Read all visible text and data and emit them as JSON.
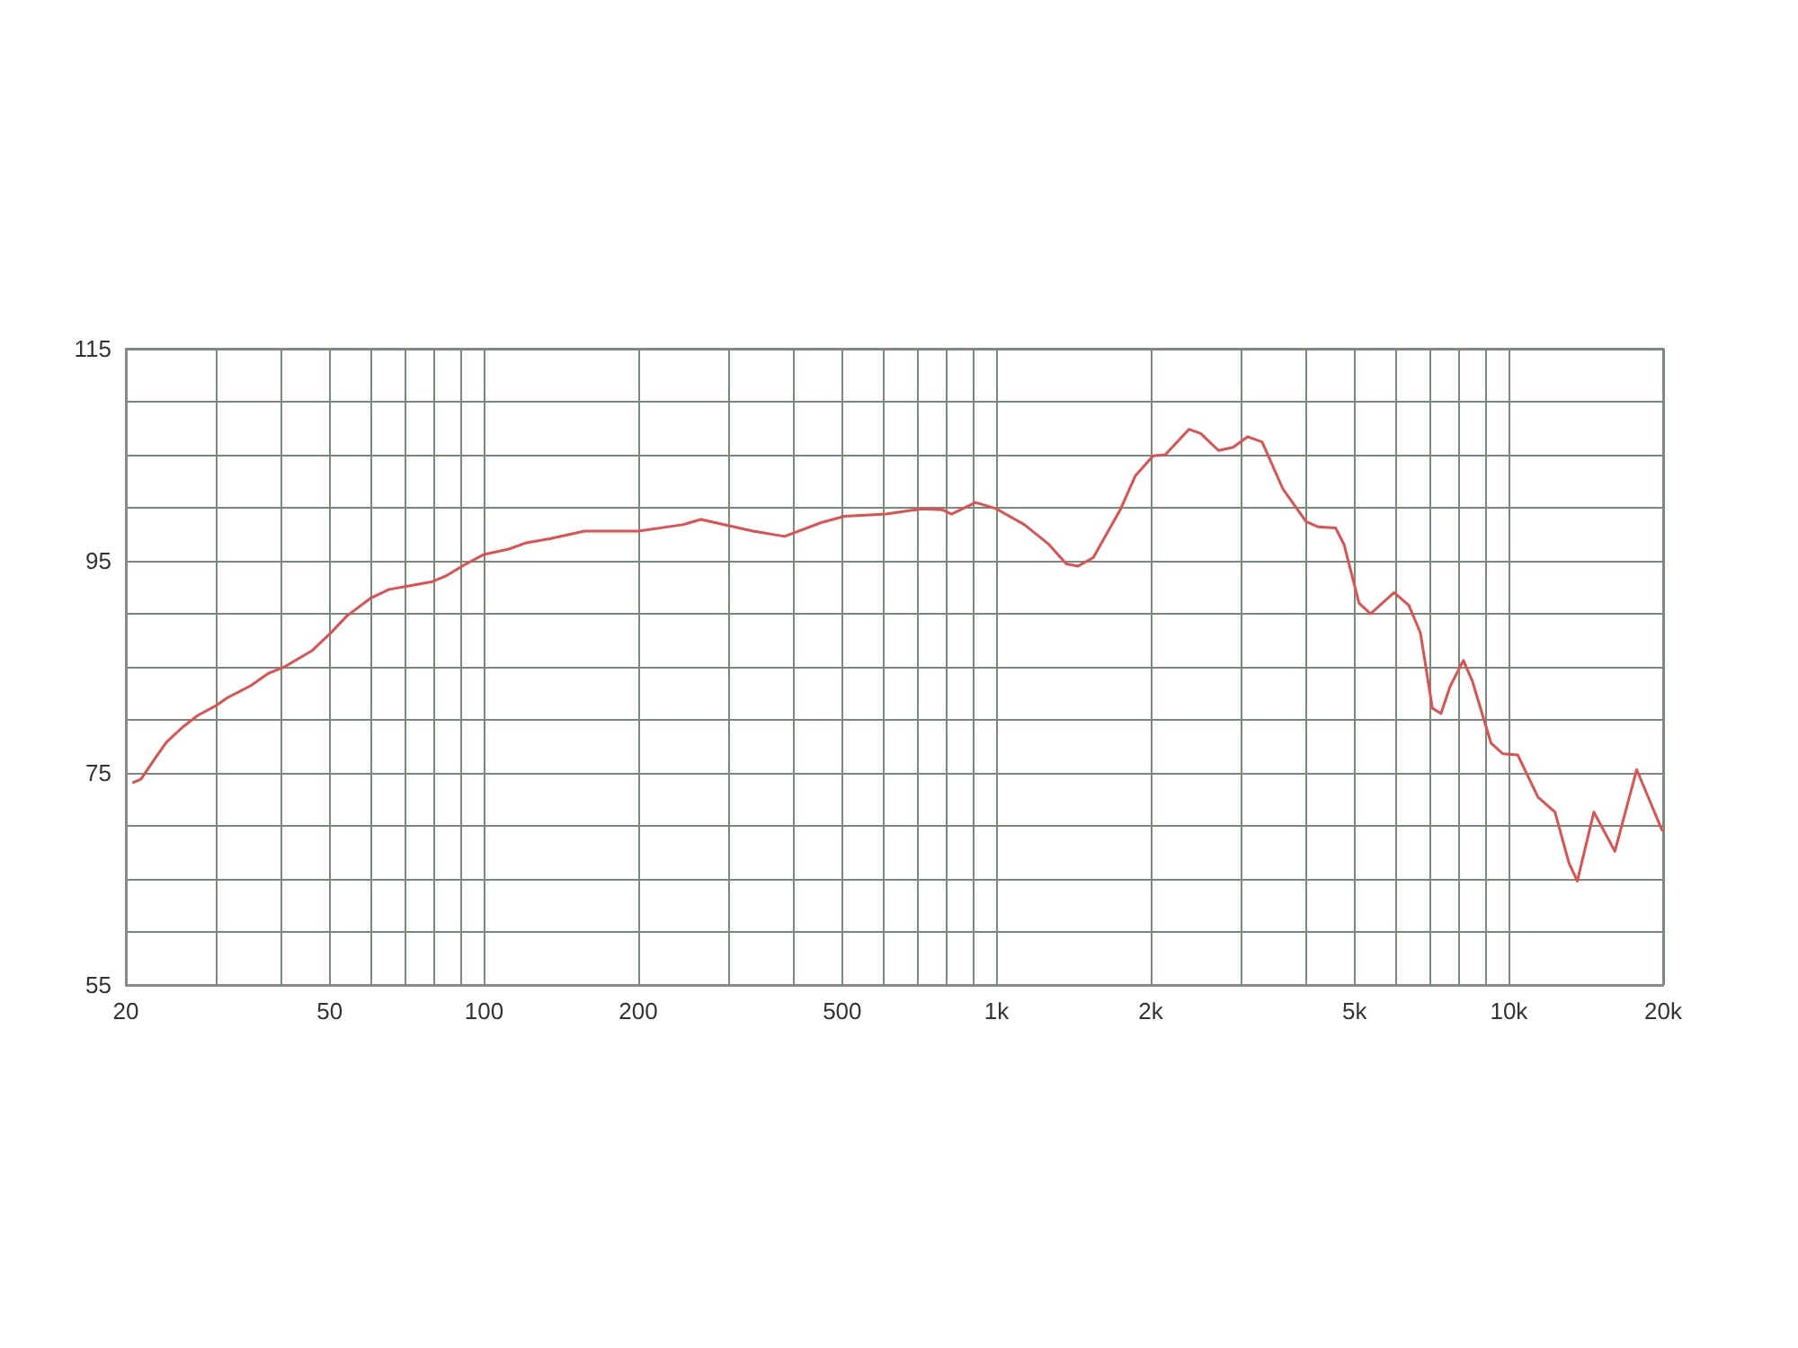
{
  "chart_data": {
    "type": "line",
    "log": "x",
    "grid": true,
    "marker": "none",
    "xlim": [
      20,
      20000
    ],
    "xticks": [
      20,
      {
        "value": 30,
        "label": null
      },
      {
        "value": 40,
        "label": null
      },
      50,
      {
        "value": 60,
        "label": null
      },
      {
        "value": 70,
        "label": null
      },
      {
        "value": 80,
        "label": null
      },
      {
        "value": 90,
        "label": null
      },
      100,
      200,
      {
        "value": 300,
        "label": null
      },
      {
        "value": 400,
        "label": null
      },
      500,
      {
        "value": 600,
        "label": null
      },
      {
        "value": 700,
        "label": null
      },
      {
        "value": 800,
        "label": null
      },
      {
        "value": 900,
        "label": null
      },
      {
        "value": 1000,
        "label": "1k"
      },
      {
        "value": 2000,
        "label": "2k"
      },
      {
        "value": 3000,
        "label": null
      },
      {
        "value": 4000,
        "label": null
      },
      {
        "value": 5000,
        "label": "5k"
      },
      {
        "value": 6000,
        "label": null
      },
      {
        "value": 7000,
        "label": null
      },
      {
        "value": 8000,
        "label": null
      },
      {
        "value": 9000,
        "label": null
      },
      {
        "value": 10000,
        "label": "10k"
      },
      {
        "value": 20000,
        "label": "20k"
      }
    ],
    "ylim": [
      55,
      115
    ],
    "yticks": [
      55,
      {
        "value": 60,
        "label": null
      },
      {
        "value": 65,
        "label": null
      },
      {
        "value": 70,
        "label": null
      },
      75,
      {
        "value": 80,
        "label": null
      },
      {
        "value": 85,
        "label": null
      },
      {
        "value": 90,
        "label": null
      },
      95,
      {
        "value": 100,
        "label": null
      },
      {
        "value": 105,
        "label": null
      },
      {
        "value": 110,
        "label": null
      },
      115
    ],
    "series": [
      {
        "color": "#e05050",
        "x": [
          20.7,
          21.4,
          22.9,
          24,
          25.8,
          27.6,
          29.9,
          31.6,
          35,
          38,
          40.8,
          46.1,
          50,
          54,
          60.2,
          65.3,
          70.9,
          78.9,
          84.5,
          91.4,
          100,
          111.8,
          121,
          135,
          157,
          200,
          244,
          265,
          335,
          386,
          455,
          505,
          609,
          716,
          785,
          817,
          910,
          1000,
          1134,
          1262,
          1369,
          1443,
          1545,
          1744,
          1866,
          2022,
          2135,
          2375,
          2504,
          2712,
          2897,
          3091,
          3300,
          3620,
          4020,
          4240,
          4590,
          4770,
          5100,
          5370,
          5970,
          6380,
          6720,
          7090,
          7370,
          7670,
          8150,
          8480,
          9230,
          9730,
          10400,
          11400,
          12300,
          13100,
          13600,
          14650,
          16100,
          17760,
          19900
        ],
        "values": [
          74.1,
          74.4,
          76.5,
          77.9,
          79.3,
          80.4,
          81.3,
          82.1,
          83.2,
          84.4,
          85,
          86.5,
          88.1,
          89.8,
          91.5,
          92.3,
          92.6,
          93,
          93.6,
          94.6,
          95.6,
          96.1,
          96.7,
          97.1,
          97.8,
          97.8,
          98.4,
          98.9,
          97.8,
          97.3,
          98.6,
          99.2,
          99.4,
          99.9,
          99.8,
          99.4,
          100.5,
          99.9,
          98.4,
          96.6,
          94.7,
          94.5,
          95.3,
          99.8,
          103,
          104.9,
          105,
          107.4,
          107,
          105.4,
          105.7,
          106.7,
          106.2,
          101.8,
          98.7,
          98.2,
          98.1,
          96.5,
          91,
          90,
          92,
          90.8,
          88.2,
          81.1,
          80.6,
          83.1,
          85.6,
          83.7,
          77.8,
          76.8,
          76.7,
          72.7,
          71.3,
          66.5,
          64.8,
          71.3,
          67.6,
          75.3,
          69.6
        ]
      }
    ]
  }
}
